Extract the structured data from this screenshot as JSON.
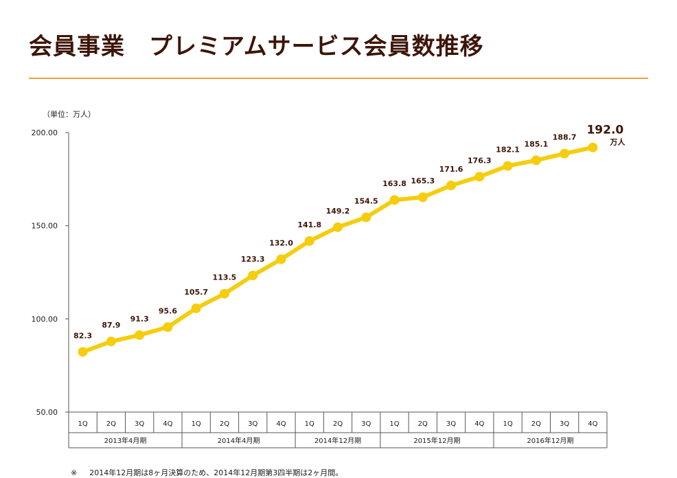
{
  "title": "会員事業　プレミアムサービス会員数推移",
  "unit_label": "（単位：万人）",
  "footnote": {
    "mark": "※",
    "text": "2014年12月期は8ヶ月決算のため、2014年12月期第3四半期は2ヶ月間。"
  },
  "colors": {
    "title": "#3d1508",
    "rule": "#e8a33d",
    "line": "#f5cd0c",
    "label": "#3d1508",
    "axis": "#555555"
  },
  "chart_data": {
    "type": "line",
    "ylim": [
      50,
      200
    ],
    "yticks": [
      "50.00",
      "100.00",
      "150.00",
      "200.00"
    ],
    "ytick_values": [
      50,
      100,
      150,
      200
    ],
    "grid": false,
    "categories": [
      "1Q",
      "2Q",
      "3Q",
      "4Q",
      "1Q",
      "2Q",
      "3Q",
      "4Q",
      "1Q",
      "2Q",
      "3Q",
      "1Q",
      "2Q",
      "3Q",
      "4Q",
      "1Q",
      "2Q",
      "3Q",
      "4Q"
    ],
    "values": [
      82.3,
      87.9,
      91.3,
      95.6,
      105.7,
      113.5,
      123.3,
      132.0,
      141.8,
      149.2,
      154.5,
      163.8,
      165.3,
      171.6,
      176.3,
      182.1,
      185.1,
      188.7,
      192.0
    ],
    "value_labels": [
      "82.3",
      "87.9",
      "91.3",
      "95.6",
      "105.7",
      "113.5",
      "123.3",
      "132.0",
      "141.8",
      "149.2",
      "154.5",
      "163.8",
      "165.3",
      "171.6",
      "176.3",
      "182.1",
      "185.1",
      "188.7",
      "192.0"
    ],
    "last_value_unit": "万人",
    "periods": [
      {
        "label": "2013年4月期",
        "count": 4
      },
      {
        "label": "2014年4月期",
        "count": 4
      },
      {
        "label": "2014年12月期",
        "count": 3
      },
      {
        "label": "2015年12月期",
        "count": 4
      },
      {
        "label": "2016年12月期",
        "count": 4
      }
    ]
  }
}
